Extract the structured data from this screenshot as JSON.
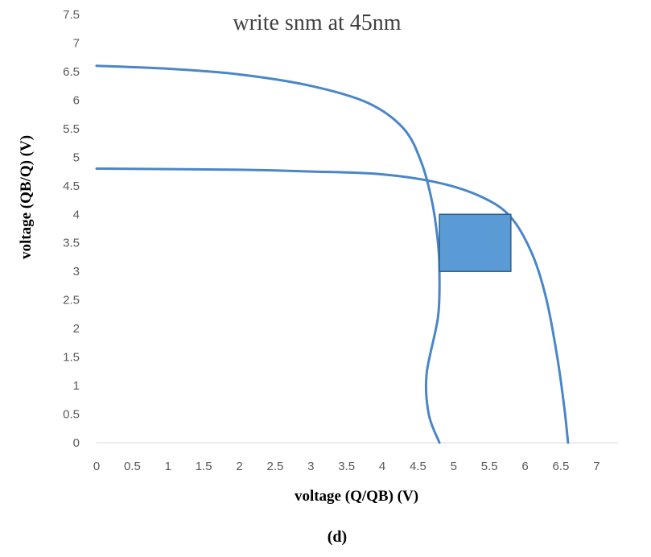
{
  "chart_data": {
    "type": "line",
    "title": "write snm at 45nm",
    "xlabel": "voltage (Q/QB) (V)",
    "ylabel": "voltage (QB/Q) (V)",
    "caption": "(d)",
    "xlim": [
      0,
      7.3
    ],
    "ylim": [
      0,
      7.5
    ],
    "x_ticks": [
      "0",
      "0.5",
      "1",
      "1.5",
      "2",
      "2.5",
      "3",
      "3.5",
      "4",
      "4.5",
      "5",
      "5.5",
      "6",
      "6.5",
      "7"
    ],
    "y_ticks": [
      "0",
      "0.5",
      "1",
      "1.5",
      "2",
      "2.5",
      "3",
      "3.5",
      "4",
      "4.5",
      "5",
      "5.5",
      "6",
      "6.5",
      "7",
      "7.5"
    ],
    "grid": false,
    "colors": {
      "curve": "#4a86c8",
      "box_fill": "#5b9bd5",
      "box_stroke": "#2e5f8c"
    },
    "series": [
      {
        "points": [
          [
            0,
            6.6
          ],
          [
            1,
            6.55
          ],
          [
            2,
            6.45
          ],
          [
            3,
            6.25
          ],
          [
            3.8,
            5.95
          ],
          [
            4.3,
            5.5
          ],
          [
            4.55,
            4.9
          ],
          [
            4.7,
            4.2
          ],
          [
            4.78,
            3.5
          ],
          [
            4.8,
            3.0
          ],
          [
            4.78,
            2.2
          ],
          [
            4.62,
            1.2
          ],
          [
            4.65,
            0.5
          ],
          [
            4.8,
            0
          ]
        ]
      },
      {
        "points": [
          [
            0,
            4.8
          ],
          [
            2,
            4.78
          ],
          [
            3,
            4.75
          ],
          [
            4,
            4.7
          ],
          [
            4.8,
            4.55
          ],
          [
            5.4,
            4.3
          ],
          [
            5.8,
            3.95
          ],
          [
            6.1,
            3.3
          ],
          [
            6.3,
            2.5
          ],
          [
            6.45,
            1.5
          ],
          [
            6.55,
            0.6
          ],
          [
            6.6,
            0
          ]
        ]
      }
    ],
    "snm_box": {
      "x": [
        4.8,
        5.8
      ],
      "y": [
        3.0,
        4.0
      ]
    }
  }
}
